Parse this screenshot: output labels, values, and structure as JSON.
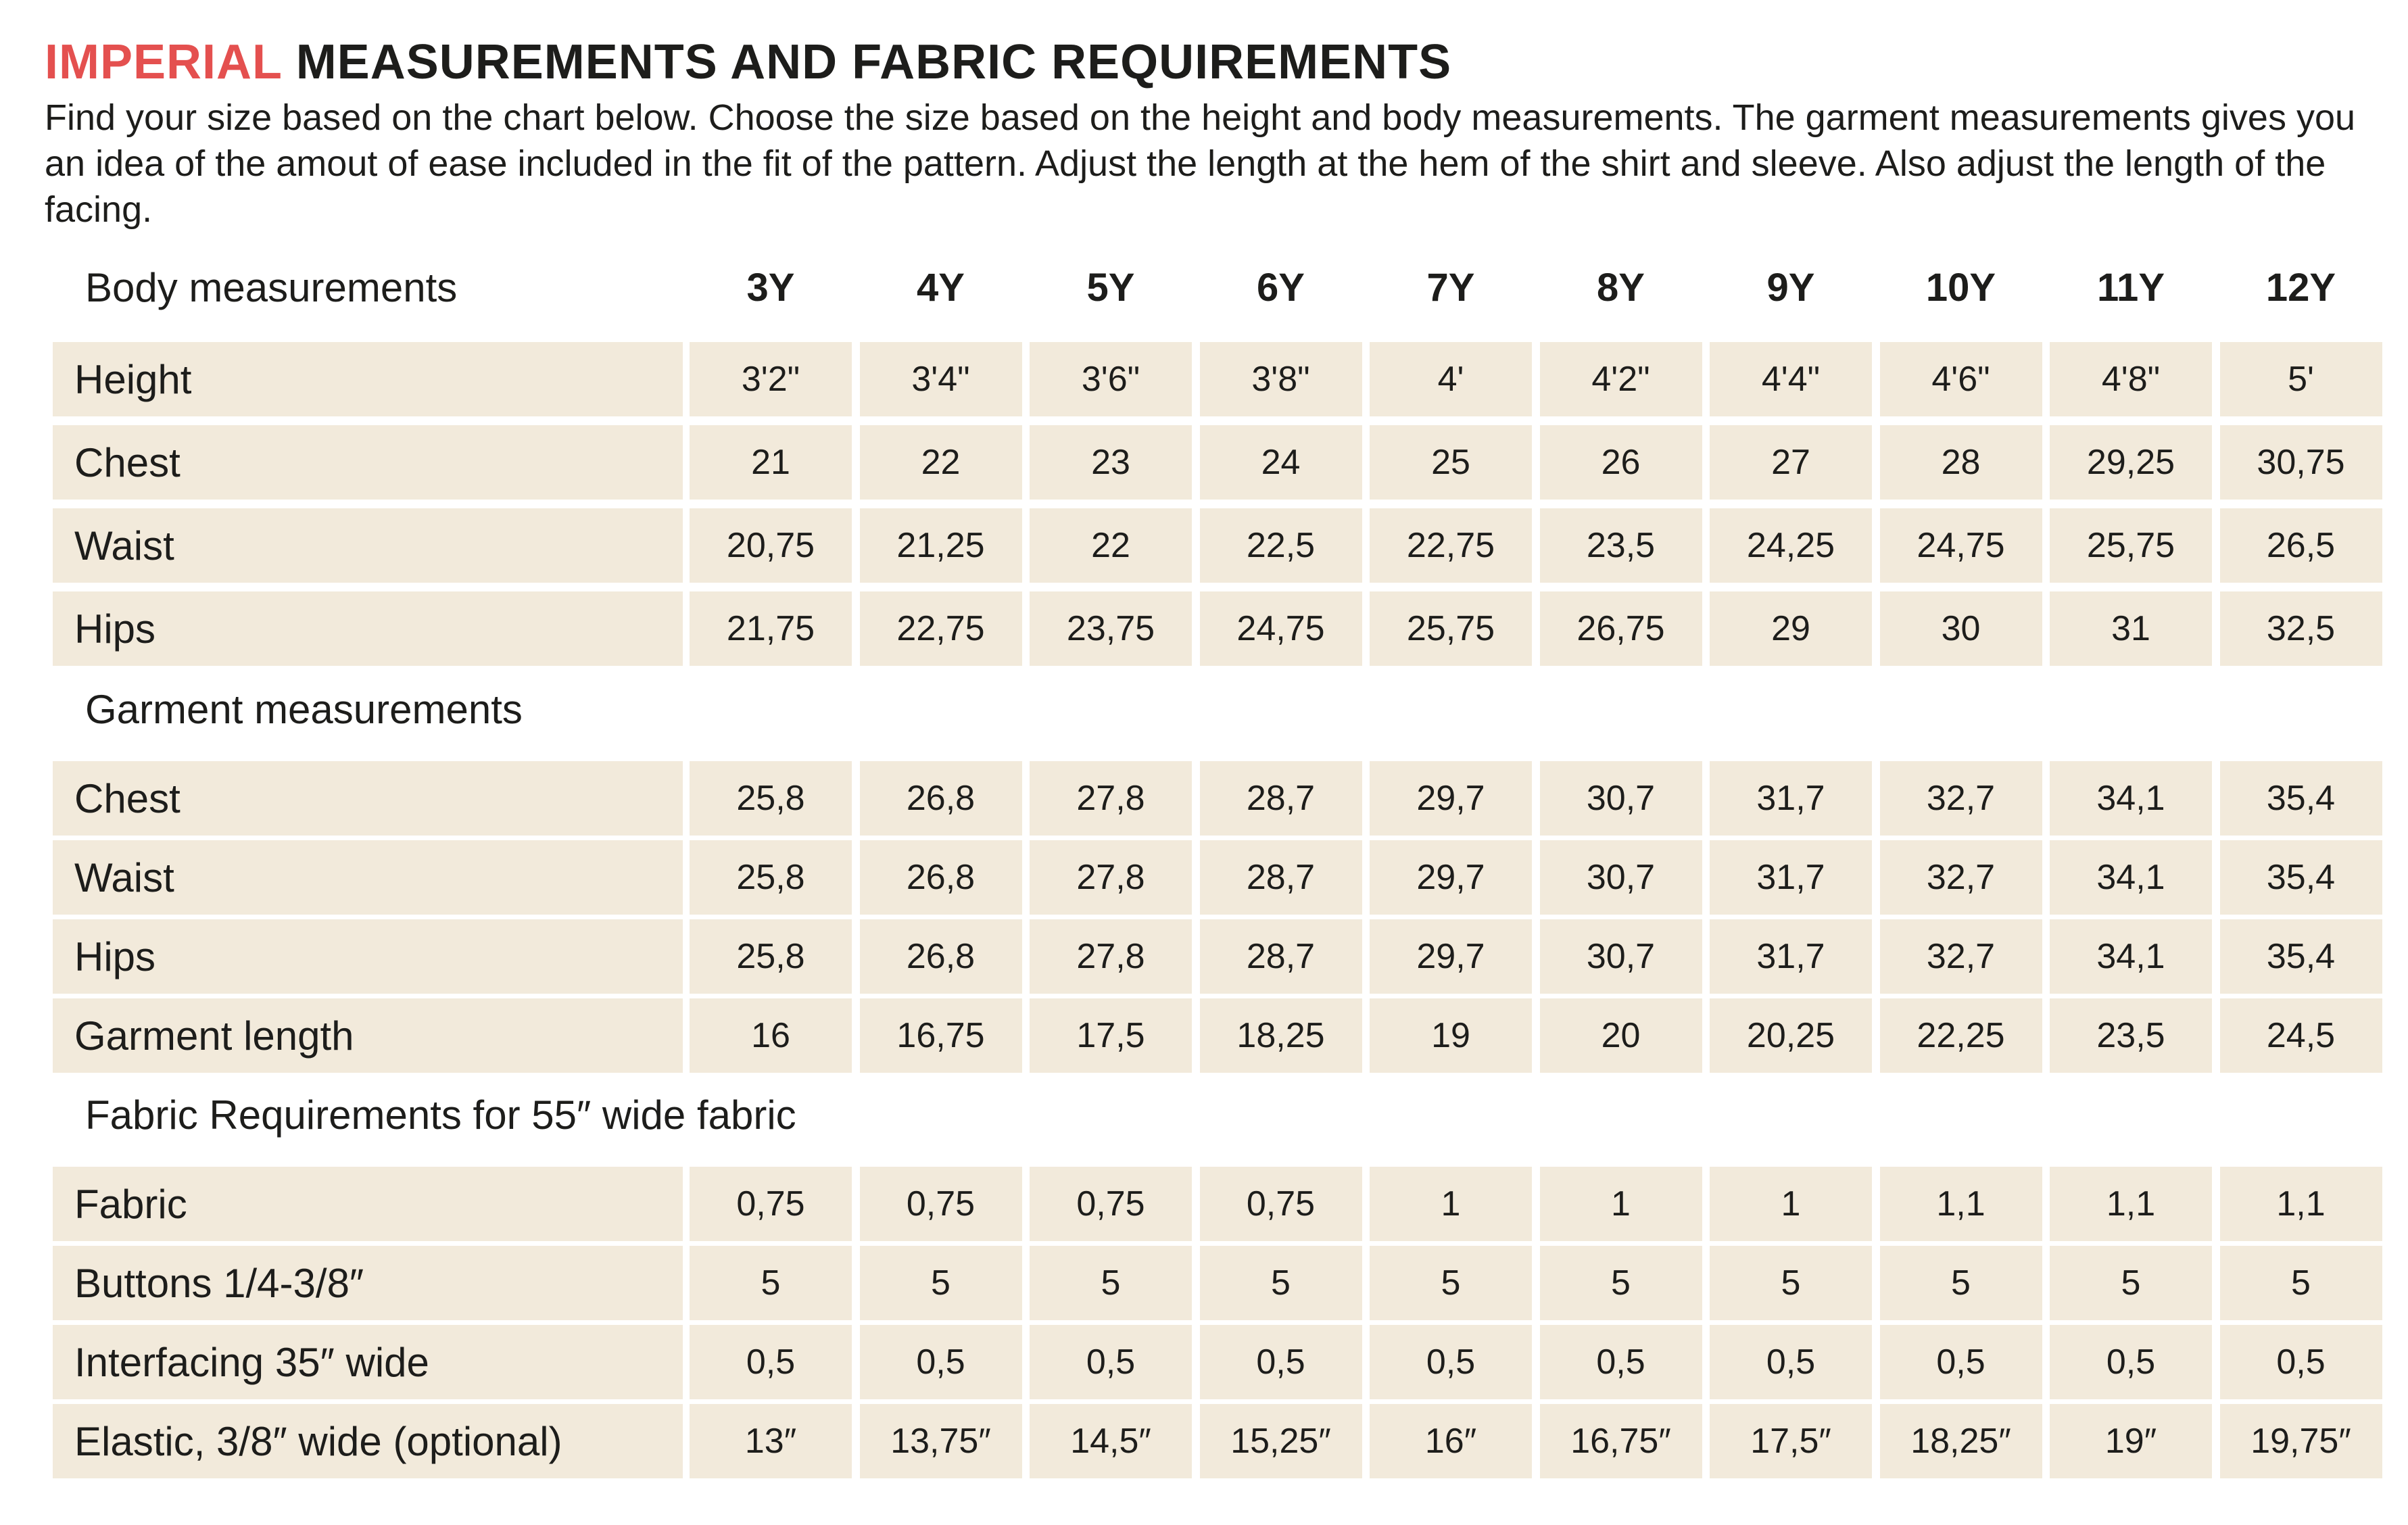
{
  "title": {
    "accent": "IMPERIAL",
    "rest": " MEASUREMENTS AND FABRIC REQUIREMENTS"
  },
  "intro": "Find your size based on the chart below. Choose the size based on the height and body measurements. The garment measurements gives you an idea of the amout of ease included in the fit of the pattern. Adjust the length at the hem of the shirt and sleeve. Also adjust the length of the facing.",
  "sizes": [
    "3Y",
    "4Y",
    "5Y",
    "6Y",
    "7Y",
    "8Y",
    "9Y",
    "10Y",
    "11Y",
    "12Y"
  ],
  "sections": [
    {
      "title": "Body measurements",
      "rows": [
        {
          "label": "Height",
          "values": [
            "3'2\"",
            "3'4\"",
            "3'6\"",
            "3'8\"",
            "4'",
            "4'2\"",
            "4'4\"",
            "4'6\"",
            "4'8\"",
            "5'"
          ]
        },
        {
          "label": "Chest",
          "values": [
            "21",
            "22",
            "23",
            "24",
            "25",
            "26",
            "27",
            "28",
            "29,25",
            "30,75"
          ]
        },
        {
          "label": "Waist",
          "values": [
            "20,75",
            "21,25",
            "22",
            "22,5",
            "22,75",
            "23,5",
            "24,25",
            "24,75",
            "25,75",
            "26,5"
          ]
        },
        {
          "label": "Hips",
          "values": [
            "21,75",
            "22,75",
            "23,75",
            "24,75",
            "25,75",
            "26,75",
            "29",
            "30",
            "31",
            "32,5"
          ]
        }
      ]
    },
    {
      "title": "Garment measurements",
      "rows": [
        {
          "label": "Chest",
          "values": [
            "25,8",
            "26,8",
            "27,8",
            "28,7",
            "29,7",
            "30,7",
            "31,7",
            "32,7",
            "34,1",
            "35,4"
          ]
        },
        {
          "label": "Waist",
          "values": [
            "25,8",
            "26,8",
            "27,8",
            "28,7",
            "29,7",
            "30,7",
            "31,7",
            "32,7",
            "34,1",
            "35,4"
          ]
        },
        {
          "label": "Hips",
          "values": [
            "25,8",
            "26,8",
            "27,8",
            "28,7",
            "29,7",
            "30,7",
            "31,7",
            "32,7",
            "34,1",
            "35,4"
          ]
        },
        {
          "label": "Garment length",
          "values": [
            "16",
            "16,75",
            "17,5",
            "18,25",
            "19",
            "20",
            "20,25",
            "22,25",
            "23,5",
            "24,5"
          ]
        }
      ]
    },
    {
      "title": "Fabric Requirements for  55″ wide fabric",
      "rows": [
        {
          "label": "Fabric",
          "values": [
            "0,75",
            "0,75",
            "0,75",
            "0,75",
            "1",
            "1",
            "1",
            "1,1",
            "1,1",
            "1,1"
          ]
        },
        {
          "label": "Buttons 1/4-3/8″",
          "values": [
            "5",
            "5",
            "5",
            "5",
            "5",
            "5",
            "5",
            "5",
            "5",
            "5"
          ]
        },
        {
          "label": "Interfacing  35″ wide",
          "values": [
            "0,5",
            "0,5",
            "0,5",
            "0,5",
            "0,5",
            "0,5",
            "0,5",
            "0,5",
            "0,5",
            "0,5"
          ]
        },
        {
          "label": "Elastic, 3/8″ wide (optional)",
          "values": [
            "13″",
            "13,75″",
            "14,5″",
            "15,25″",
            "16″",
            "16,75″",
            "17,5″",
            "18,25″",
            "19″",
            "19,75″"
          ]
        }
      ]
    }
  ]
}
